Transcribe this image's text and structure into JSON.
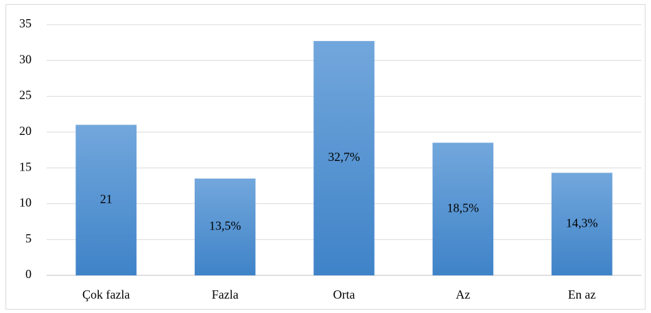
{
  "chart_data": {
    "type": "bar",
    "categories": [
      "Çok fazla",
      "Fazla",
      "Orta",
      "Az",
      "En az"
    ],
    "values": [
      21,
      13.5,
      32.7,
      18.5,
      14.3
    ],
    "value_labels": [
      "21",
      "13,5%",
      "32,7%",
      "18,5%",
      "14,3%"
    ],
    "color": "#4a8ed2",
    "ylim": [
      0,
      35
    ],
    "yticks": [
      0,
      5,
      10,
      15,
      20,
      25,
      30,
      35
    ],
    "grid": true
  }
}
